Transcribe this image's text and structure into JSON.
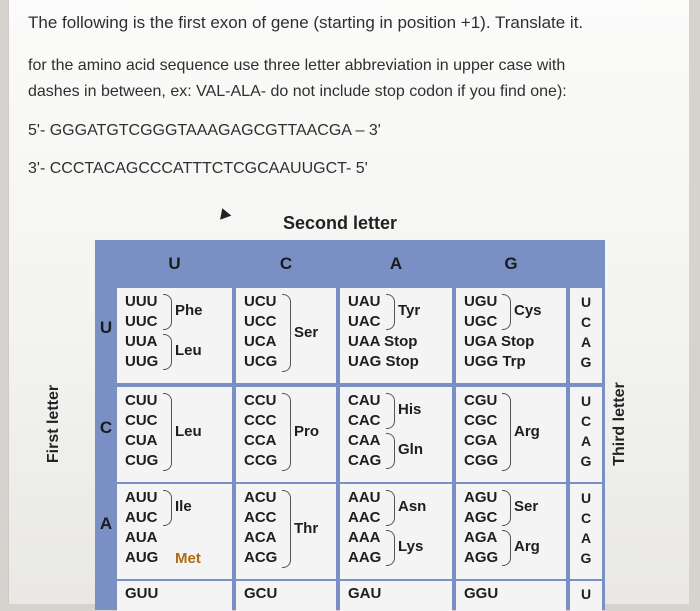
{
  "question": {
    "line1": "The following is the first exon of gene (starting in position +1). Translate it.",
    "line2": "for the amino acid sequence use three letter abbreviation in upper case with",
    "line3": "dashes in between, ex: VAL-ALA- do not include stop codon if you find one):",
    "strand5": "5'- GGGATGTCGGGTAAAGAGCGTTAACGA – 3'",
    "strand3": "3'- CCCTACAGCCCATTTCTCGCAAUUGCT- 5'"
  },
  "table": {
    "second_letter": "Second letter",
    "first_letter": "First letter",
    "third_letter": "Third letter",
    "col_headers": [
      "U",
      "C",
      "A",
      "G"
    ],
    "row_headers": [
      "U",
      "C",
      "A"
    ],
    "third_letters": [
      "U",
      "C",
      "A",
      "G"
    ],
    "rows": [
      {
        "U": {
          "codons": [
            "UUU",
            "UUC",
            "UUA",
            "UUG"
          ],
          "aa": [
            "Phe",
            "Leu"
          ]
        },
        "C": {
          "codons": [
            "UCU",
            "UCC",
            "UCA",
            "UCG"
          ],
          "aa": [
            "Ser"
          ]
        },
        "A": {
          "codons": [
            "UAU",
            "UAC",
            "UAA Stop",
            "UAG Stop"
          ],
          "aa": [
            "Tyr"
          ]
        },
        "G": {
          "codons": [
            "UGU",
            "UGC",
            "UGA Stop",
            "UGG Trp"
          ],
          "aa": [
            "Cys"
          ]
        }
      },
      {
        "U": {
          "codons": [
            "CUU",
            "CUC",
            "CUA",
            "CUG"
          ],
          "aa": [
            "Leu"
          ]
        },
        "C": {
          "codons": [
            "CCU",
            "CCC",
            "CCA",
            "CCG"
          ],
          "aa": [
            "Pro"
          ]
        },
        "A": {
          "codons": [
            "CAU",
            "CAC",
            "CAA",
            "CAG"
          ],
          "aa": [
            "His",
            "Gln"
          ]
        },
        "G": {
          "codons": [
            "CGU",
            "CGC",
            "CGA",
            "CGG"
          ],
          "aa": [
            "Arg"
          ]
        }
      },
      {
        "U": {
          "codons": [
            "AUU",
            "AUC",
            "AUA",
            "AUG"
          ],
          "aa": [
            "Ile",
            "Met"
          ]
        },
        "C": {
          "codons": [
            "ACU",
            "ACC",
            "ACA",
            "ACG"
          ],
          "aa": [
            "Thr"
          ]
        },
        "A": {
          "codons": [
            "AAU",
            "AAC",
            "AAA",
            "AAG"
          ],
          "aa": [
            "Asn",
            "Lys"
          ]
        },
        "G": {
          "codons": [
            "AGU",
            "AGC",
            "AGA",
            "AGG"
          ],
          "aa": [
            "Ser",
            "Arg"
          ]
        }
      }
    ],
    "partial_row": [
      "GUU",
      "GCU",
      "GAU",
      "GGU"
    ]
  }
}
